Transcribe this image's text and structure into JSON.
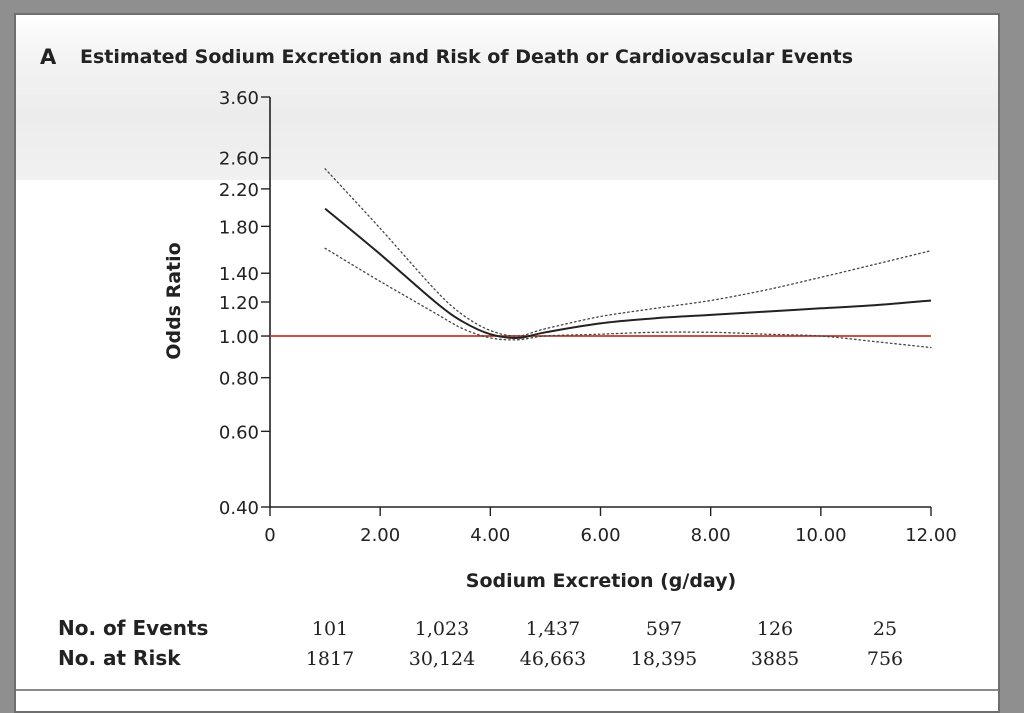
{
  "chart_data": {
    "type": "line",
    "panel_label": "A",
    "title": "Estimated Sodium Excretion and Risk of Death or Cardiovascular Events",
    "xlabel": "Sodium Excretion (g/day)",
    "ylabel": "Odds Ratio",
    "x_ticks": [
      0,
      2,
      4,
      6,
      8,
      10,
      12
    ],
    "x_tick_labels": [
      "0",
      "2.00",
      "4.00",
      "6.00",
      "8.00",
      "10.00",
      "12.00"
    ],
    "xlim": [
      0,
      12
    ],
    "y_scale": "log",
    "y_ticks": [
      0.4,
      0.6,
      0.8,
      1.0,
      1.2,
      1.4,
      1.8,
      2.2,
      2.6,
      3.6
    ],
    "y_tick_labels": [
      "0.40",
      "0.60",
      "0.80",
      "1.00",
      "1.20",
      "1.40",
      "1.80",
      "2.20",
      "2.60",
      "3.60"
    ],
    "ylim": [
      0.4,
      3.6
    ],
    "reference_line": {
      "y": 1.0,
      "color": "#c0392b"
    },
    "series": [
      {
        "style": "solid",
        "color": "#222222",
        "x": [
          1.0,
          2.0,
          3.0,
          3.5,
          4.0,
          4.5,
          5.0,
          6.0,
          7.0,
          8.0,
          9.0,
          10.0,
          11.0,
          12.0
        ],
        "y": [
          1.98,
          1.55,
          1.2,
          1.08,
          1.01,
          0.99,
          1.02,
          1.07,
          1.1,
          1.12,
          1.14,
          1.16,
          1.18,
          1.21
        ]
      },
      {
        "style": "dotted",
        "color": "#444444",
        "x": [
          1.0,
          2.0,
          3.0,
          3.5,
          4.0,
          4.5,
          5.0,
          6.0,
          7.0,
          8.0,
          9.0,
          10.0,
          11.0,
          12.0
        ],
        "y": [
          2.45,
          1.78,
          1.28,
          1.12,
          1.03,
          1.0,
          1.04,
          1.11,
          1.16,
          1.21,
          1.28,
          1.37,
          1.47,
          1.58
        ]
      },
      {
        "style": "dotted",
        "color": "#444444",
        "x": [
          1.0,
          2.0,
          3.0,
          3.5,
          4.0,
          4.5,
          5.0,
          6.0,
          7.0,
          8.0,
          9.0,
          10.0,
          11.0,
          12.0
        ],
        "y": [
          1.6,
          1.34,
          1.13,
          1.04,
          0.99,
          0.98,
          1.0,
          1.01,
          1.02,
          1.02,
          1.01,
          1.0,
          0.97,
          0.94
        ]
      }
    ],
    "table": {
      "rows": [
        {
          "label": "No. of Events",
          "values": [
            "101",
            "1,023",
            "1,437",
            "597",
            "126",
            "25"
          ]
        },
        {
          "label": "No. at Risk",
          "values": [
            "1817",
            "30,124",
            "46,663",
            "18,395",
            "3885",
            "756"
          ]
        }
      ]
    }
  }
}
